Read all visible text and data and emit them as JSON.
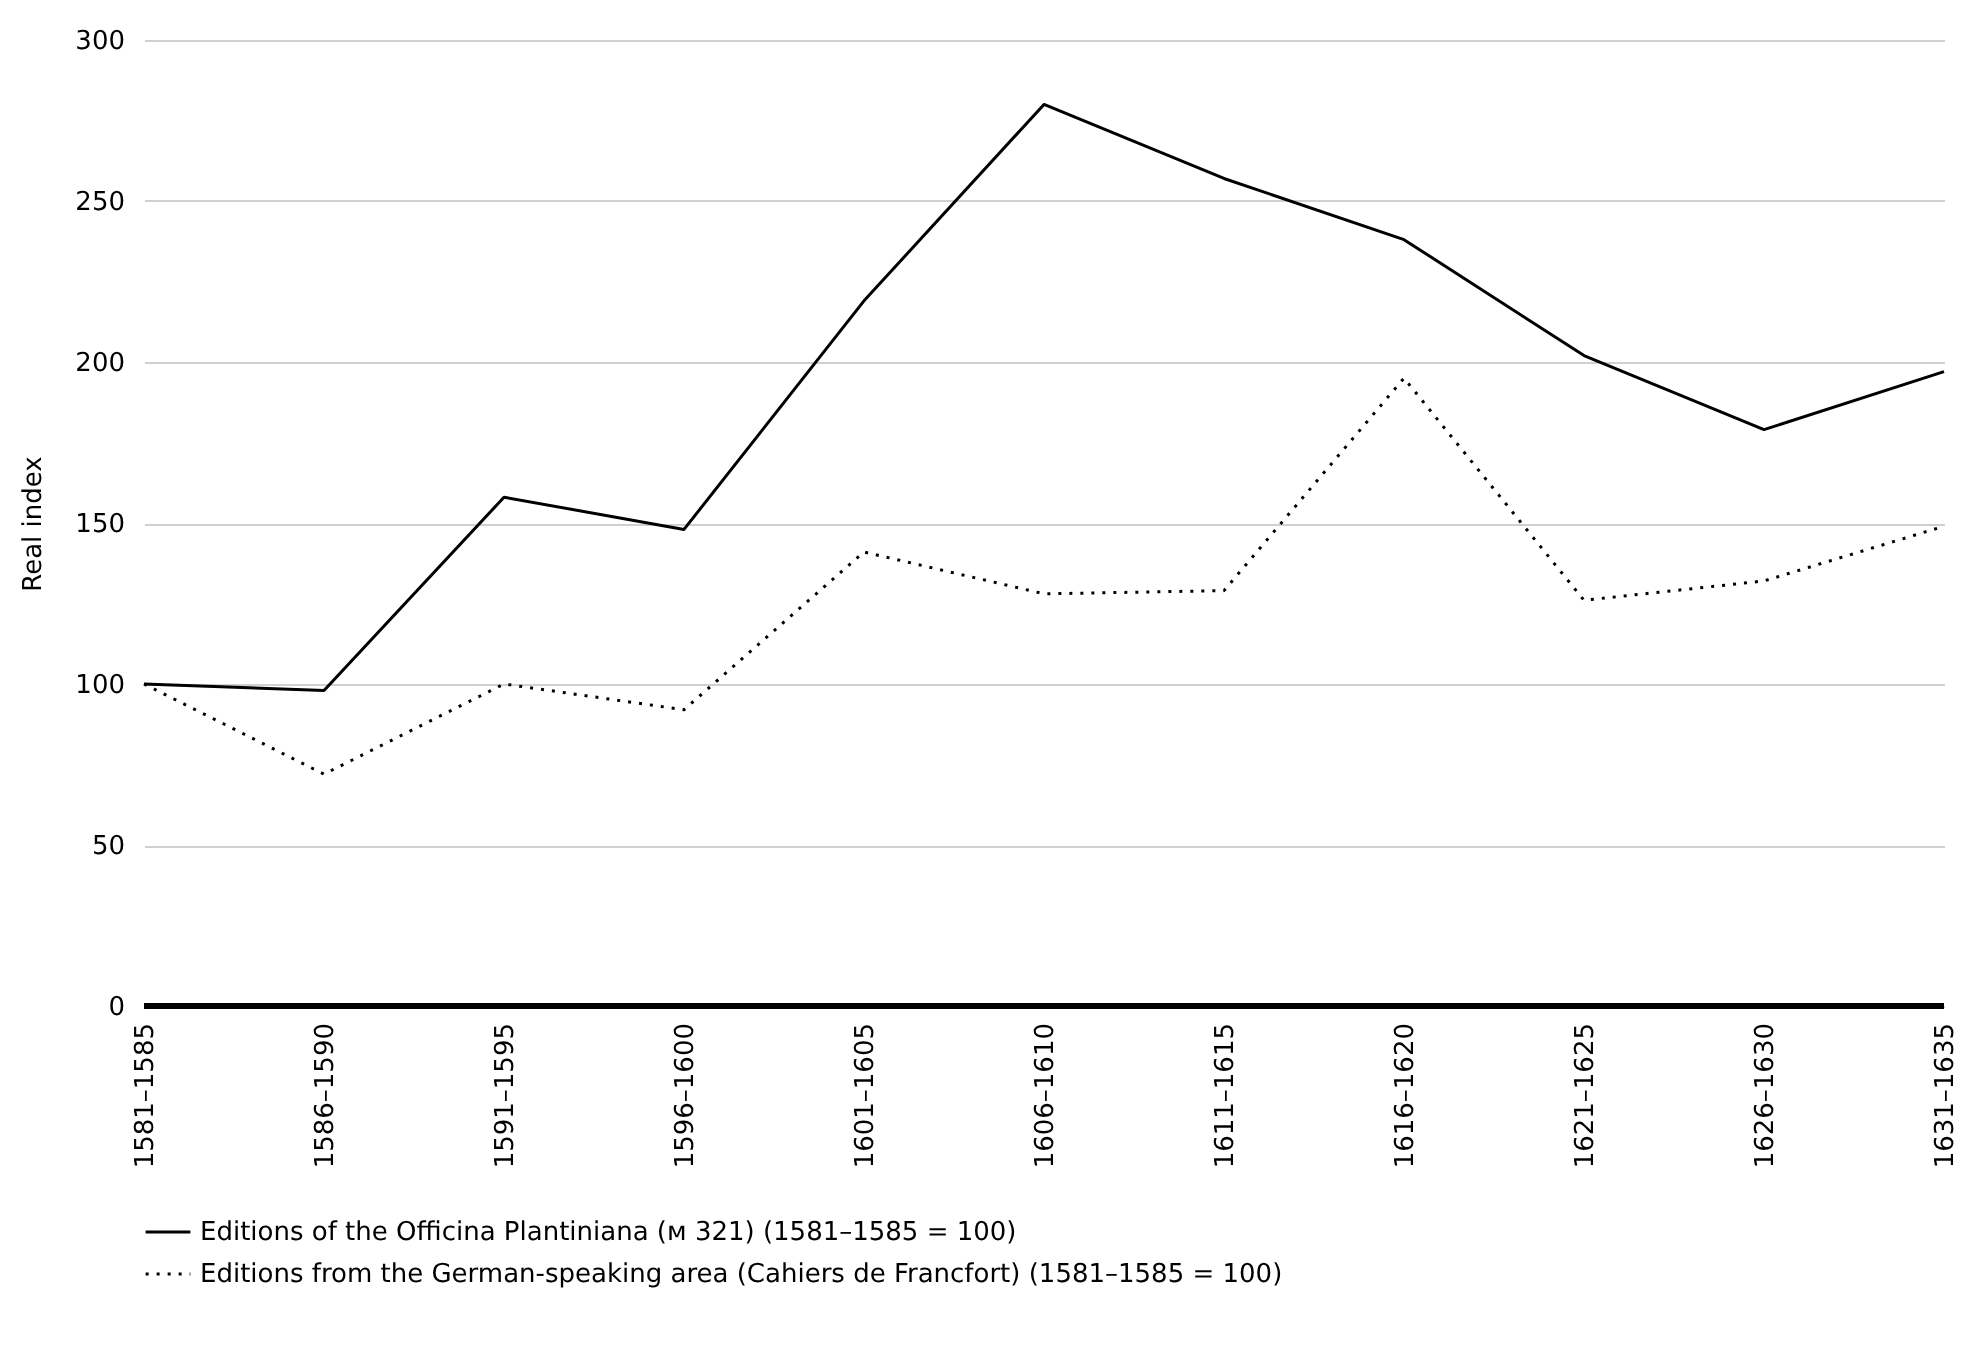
{
  "chart_data": {
    "type": "line",
    "ylabel": "Real index",
    "categories": [
      "1581–1585",
      "1586–1590",
      "1591–1595",
      "1596–1600",
      "1601–1605",
      "1606–1610",
      "1611–1615",
      "1616–1620",
      "1621–1625",
      "1626–1630",
      "1631–1635"
    ],
    "series": [
      {
        "name": "Editions of the Officina Plantiniana (ᴍ 321) (1581–1585 = 100)",
        "color": "#000000",
        "line_style": "solid",
        "values": [
          100,
          98,
          158,
          148,
          219,
          280,
          257,
          238,
          202,
          179,
          197
        ]
      },
      {
        "name": "Editions from the German-speaking area (Cahiers de Francfort) (1581–1585 = 100)",
        "color": "#000000",
        "line_style": "dotted",
        "values": [
          100,
          72,
          100,
          92,
          141,
          128,
          129,
          195,
          126,
          132,
          149
        ]
      }
    ],
    "ylim": [
      0,
      300
    ],
    "yticks": [
      0,
      50,
      100,
      150,
      200,
      250,
      300
    ],
    "grid": "y",
    "legend": "bottom left",
    "marker": "none"
  }
}
